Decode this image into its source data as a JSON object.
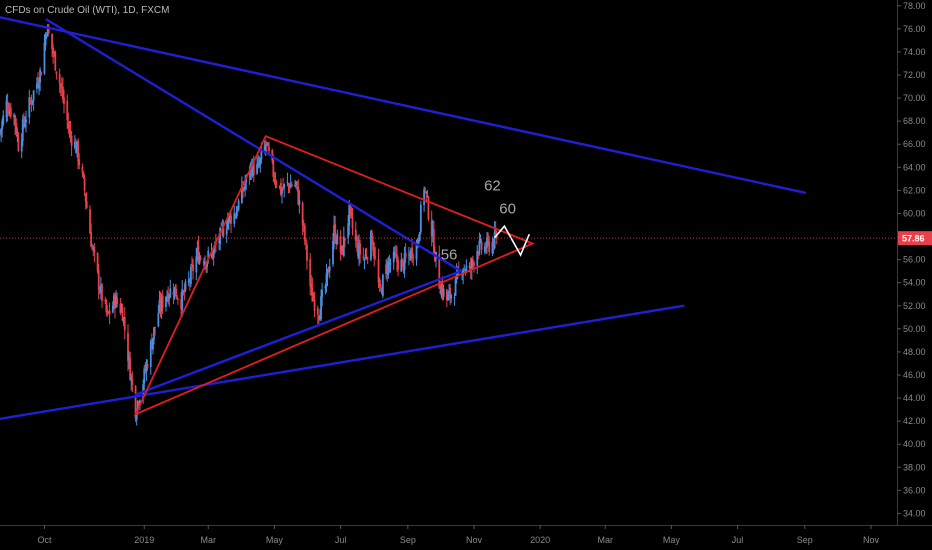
{
  "header": {
    "title": "CFDs on Crude Oil (WTI), 1D, FXCM"
  },
  "colors": {
    "up": "#4a90e2",
    "down": "#e8404a",
    "blue_line": "#1f1fd6",
    "red_line": "#e01f1f",
    "path": "#ffffff",
    "price_tag": "#e8404a"
  },
  "chart_data": {
    "type": "candlestick",
    "symbol": "CFDs on Crude Oil (WTI)",
    "interval": "1D",
    "source": "FXCM",
    "ylim": [
      33,
      78.5
    ],
    "y_ticks": [
      34,
      36,
      38,
      40,
      42,
      44,
      46,
      48,
      50,
      52,
      54,
      56,
      58,
      60,
      62,
      64,
      66,
      68,
      70,
      72,
      74,
      76,
      78
    ],
    "y_tick_labels": [
      "34.00",
      "36.00",
      "38.00",
      "40.00",
      "42.00",
      "44.00",
      "46.00",
      "48.00",
      "50.00",
      "52.00",
      "54.00",
      "56.00",
      "58.00",
      "60.00",
      "62.00",
      "64.00",
      "66.00",
      "68.00",
      "70.00",
      "72.00",
      "74.00",
      "76.00",
      "78.00"
    ],
    "x_range": [
      "2018-08-21",
      "2020-11-25"
    ],
    "x_ticks": [
      {
        "date": "2018-10-01",
        "label": "Oct"
      },
      {
        "date": "2019-01-01",
        "label": "2019"
      },
      {
        "date": "2019-03-01",
        "label": "Mar"
      },
      {
        "date": "2019-05-01",
        "label": "May"
      },
      {
        "date": "2019-07-01",
        "label": "Jul"
      },
      {
        "date": "2019-09-01",
        "label": "Sep"
      },
      {
        "date": "2019-11-01",
        "label": "Nov"
      },
      {
        "date": "2020-01-01",
        "label": "2020"
      },
      {
        "date": "2020-03-01",
        "label": "Mar"
      },
      {
        "date": "2020-05-01",
        "label": "May"
      },
      {
        "date": "2020-07-01",
        "label": "Jul"
      },
      {
        "date": "2020-09-01",
        "label": "Sep"
      },
      {
        "date": "2020-11-01",
        "label": "Nov"
      }
    ],
    "close_path": [
      [
        "2018-08-21",
        67.0
      ],
      [
        "2018-08-27",
        69.5
      ],
      [
        "2018-09-03",
        68.5
      ],
      [
        "2018-09-07",
        66.0
      ],
      [
        "2018-09-14",
        68.5
      ],
      [
        "2018-09-21",
        70.5
      ],
      [
        "2018-09-28",
        72.5
      ],
      [
        "2018-10-03",
        76.2
      ],
      [
        "2018-10-10",
        73.5
      ],
      [
        "2018-10-17",
        70.5
      ],
      [
        "2018-10-24",
        67.0
      ],
      [
        "2018-10-31",
        65.5
      ],
      [
        "2018-11-07",
        62.0
      ],
      [
        "2018-11-14",
        57.0
      ],
      [
        "2018-11-21",
        53.5
      ],
      [
        "2018-11-28",
        51.0
      ],
      [
        "2018-12-05",
        52.5
      ],
      [
        "2018-12-12",
        51.5
      ],
      [
        "2018-12-18",
        47.0
      ],
      [
        "2018-12-24",
        43.0
      ],
      [
        "2018-12-31",
        45.5
      ],
      [
        "2019-01-07",
        48.5
      ],
      [
        "2019-01-14",
        51.5
      ],
      [
        "2019-01-21",
        53.0
      ],
      [
        "2019-01-28",
        53.5
      ],
      [
        "2019-02-04",
        52.5
      ],
      [
        "2019-02-11",
        54.0
      ],
      [
        "2019-02-19",
        56.5
      ],
      [
        "2019-02-26",
        56.0
      ],
      [
        "2019-03-05",
        56.5
      ],
      [
        "2019-03-12",
        58.0
      ],
      [
        "2019-03-19",
        59.5
      ],
      [
        "2019-03-26",
        60.0
      ],
      [
        "2019-04-02",
        62.0
      ],
      [
        "2019-04-09",
        64.0
      ],
      [
        "2019-04-16",
        63.8
      ],
      [
        "2019-04-23",
        66.0
      ],
      [
        "2019-04-30",
        63.5
      ],
      [
        "2019-05-07",
        62.0
      ],
      [
        "2019-05-14",
        62.5
      ],
      [
        "2019-05-21",
        62.5
      ],
      [
        "2019-05-28",
        58.5
      ],
      [
        "2019-06-04",
        53.0
      ],
      [
        "2019-06-11",
        51.5
      ],
      [
        "2019-06-18",
        54.0
      ],
      [
        "2019-06-25",
        58.5
      ],
      [
        "2019-07-02",
        56.5
      ],
      [
        "2019-07-09",
        60.0
      ],
      [
        "2019-07-16",
        57.0
      ],
      [
        "2019-07-23",
        56.0
      ],
      [
        "2019-07-30",
        58.0
      ],
      [
        "2019-08-06",
        53.0
      ],
      [
        "2019-08-13",
        55.5
      ],
      [
        "2019-08-20",
        56.0
      ],
      [
        "2019-08-27",
        55.5
      ],
      [
        "2019-09-03",
        56.5
      ],
      [
        "2019-09-10",
        57.5
      ],
      [
        "2019-09-16",
        62.5
      ],
      [
        "2019-09-23",
        58.5
      ],
      [
        "2019-09-30",
        54.0
      ],
      [
        "2019-10-07",
        52.5
      ],
      [
        "2019-10-14",
        53.5
      ],
      [
        "2019-10-21",
        55.5
      ],
      [
        "2019-10-28",
        55.0
      ],
      [
        "2019-11-04",
        57.0
      ],
      [
        "2019-11-11",
        57.0
      ],
      [
        "2019-11-18",
        57.5
      ],
      [
        "2019-11-22",
        57.86
      ]
    ],
    "last_price": 57.86,
    "last_price_label": "57.86",
    "annotations": [
      {
        "text": "62",
        "date": "2019-11-18",
        "price": 62.0
      },
      {
        "text": "60",
        "date": "2019-12-02",
        "price": 60.0
      },
      {
        "text": "56",
        "date": "2019-10-09",
        "price": 56.0
      }
    ],
    "blue_lines": [
      {
        "from": [
          "2018-08-21",
          77.0
        ],
        "to": [
          "2020-09-01",
          61.8
        ]
      },
      {
        "from": [
          "2018-10-03",
          76.8
        ],
        "to": [
          "2019-10-20",
          55.0
        ]
      },
      {
        "from": [
          "2018-12-24",
          44.3
        ],
        "to": [
          "2019-10-20",
          55.0
        ]
      },
      {
        "from": [
          "2018-08-21",
          42.2
        ],
        "to": [
          "2020-05-12",
          52.0
        ]
      }
    ],
    "red_triangle": [
      [
        "2018-12-24",
        42.6
      ],
      [
        "2019-04-23",
        66.7
      ],
      [
        "2019-12-25",
        57.4
      ]
    ],
    "projection": [
      [
        "2019-11-20",
        57.9
      ],
      [
        "2019-11-29",
        58.9
      ],
      [
        "2019-12-14",
        56.4
      ],
      [
        "2019-12-22",
        58.2
      ]
    ],
    "grid": false
  }
}
